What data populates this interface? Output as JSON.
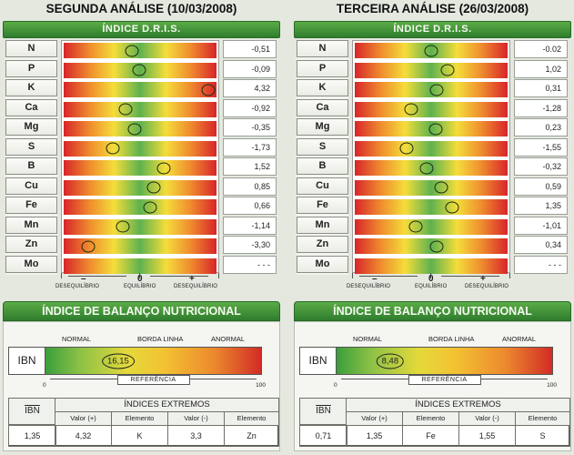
{
  "panels": [
    {
      "title": "SEGUNDA ANÁLISE (10/03/2008)",
      "dris_header": "ÍNDICE D.R.I.S.",
      "nutrients": [
        {
          "label": "N",
          "value": "-0,51",
          "pos": -0.12
        },
        {
          "label": "P",
          "value": "-0,09",
          "pos": -0.02
        },
        {
          "label": "K",
          "value": "4,32",
          "pos": 1.0
        },
        {
          "label": "Ca",
          "value": "-0,92",
          "pos": -0.22
        },
        {
          "label": "Mg",
          "value": "-0,35",
          "pos": -0.08
        },
        {
          "label": "S",
          "value": "-1,73",
          "pos": -0.4
        },
        {
          "label": "B",
          "value": "1,52",
          "pos": 0.35
        },
        {
          "label": "Cu",
          "value": "0,85",
          "pos": 0.2
        },
        {
          "label": "Fe",
          "value": "0,66",
          "pos": 0.15
        },
        {
          "label": "Mn",
          "value": "-1,14",
          "pos": -0.26
        },
        {
          "label": "Zn",
          "value": "-3,30",
          "pos": -0.76
        },
        {
          "label": "Mo",
          "value": "- - -",
          "pos": null
        }
      ],
      "axis": {
        "minus": "–",
        "zero": "0",
        "plus": "+",
        "cap_left": "DESEQUILÍBRIO",
        "cap_mid": "EQUILÍBRIO",
        "cap_right": "DESEQUILÍBRIO"
      },
      "ibn_header": "ÍNDICE DE BALANÇO NUTRICIONAL",
      "zones": {
        "normal": "NORMAL",
        "borda": "BORDA LINHA",
        "anormal": "ANORMAL"
      },
      "ibn_label": "IBN",
      "ibn_value": "16,15",
      "ibn_pct": 0.1615,
      "scale_min": "0",
      "scale_max": "100",
      "referencia": "REFERÊNCIA",
      "table": {
        "ibn_head": "IBN",
        "extremos": "ÍNDICES EXTREMOS",
        "h_valor_plus": "Valor (+)",
        "h_elem1": "Elemento",
        "h_valor_minus": "Valor (-)",
        "h_elem2": "Elemento",
        "ibn": "1,35",
        "valor_plus": "4,32",
        "elem1": "K",
        "valor_minus": "3,3",
        "elem2": "Zn"
      }
    },
    {
      "title": "TERCEIRA ANÁLISE (26/03/2008)",
      "dris_header": "ÍNDICE D.R.I.S.",
      "nutrients": [
        {
          "label": "N",
          "value": "-0.02",
          "pos": 0.0
        },
        {
          "label": "P",
          "value": "1,02",
          "pos": 0.24
        },
        {
          "label": "K",
          "value": "0,31",
          "pos": 0.08
        },
        {
          "label": "Ca",
          "value": "-1,28",
          "pos": -0.3
        },
        {
          "label": "Mg",
          "value": "0,23",
          "pos": 0.06
        },
        {
          "label": "S",
          "value": "-1,55",
          "pos": -0.36
        },
        {
          "label": "B",
          "value": "-0,32",
          "pos": -0.07
        },
        {
          "label": "Cu",
          "value": "0,59",
          "pos": 0.14
        },
        {
          "label": "Fe",
          "value": "1,35",
          "pos": 0.31
        },
        {
          "label": "Mn",
          "value": "-1,01",
          "pos": -0.23
        },
        {
          "label": "Zn",
          "value": "0,34",
          "pos": 0.08
        },
        {
          "label": "Mo",
          "value": "- - -",
          "pos": null
        }
      ],
      "axis": {
        "minus": "–",
        "zero": "0",
        "plus": "+",
        "cap_left": "DESEQUILÍBRIO",
        "cap_mid": "EQUILÍBRIO",
        "cap_right": "DESEQUILÍBRIO"
      },
      "ibn_header": "ÍNDICE DE BALANÇO NUTRICIONAL",
      "zones": {
        "normal": "NORMAL",
        "borda": "BORDA LINHA",
        "anormal": "ANORMAL"
      },
      "ibn_label": "IBN",
      "ibn_value": "8,48",
      "ibn_pct": 0.0848,
      "scale_min": "0",
      "scale_max": "100",
      "referencia": "REFERÊNCIA",
      "table": {
        "ibn_head": "IBN",
        "extremos": "ÍNDICES EXTREMOS",
        "h_valor_plus": "Valor (+)",
        "h_elem1": "Elemento",
        "h_valor_minus": "Valor (-)",
        "h_elem2": "Elemento",
        "ibn": "0,71",
        "valor_plus": "1,35",
        "elem1": "Fe",
        "valor_minus": "1,55",
        "elem2": "S"
      }
    }
  ]
}
